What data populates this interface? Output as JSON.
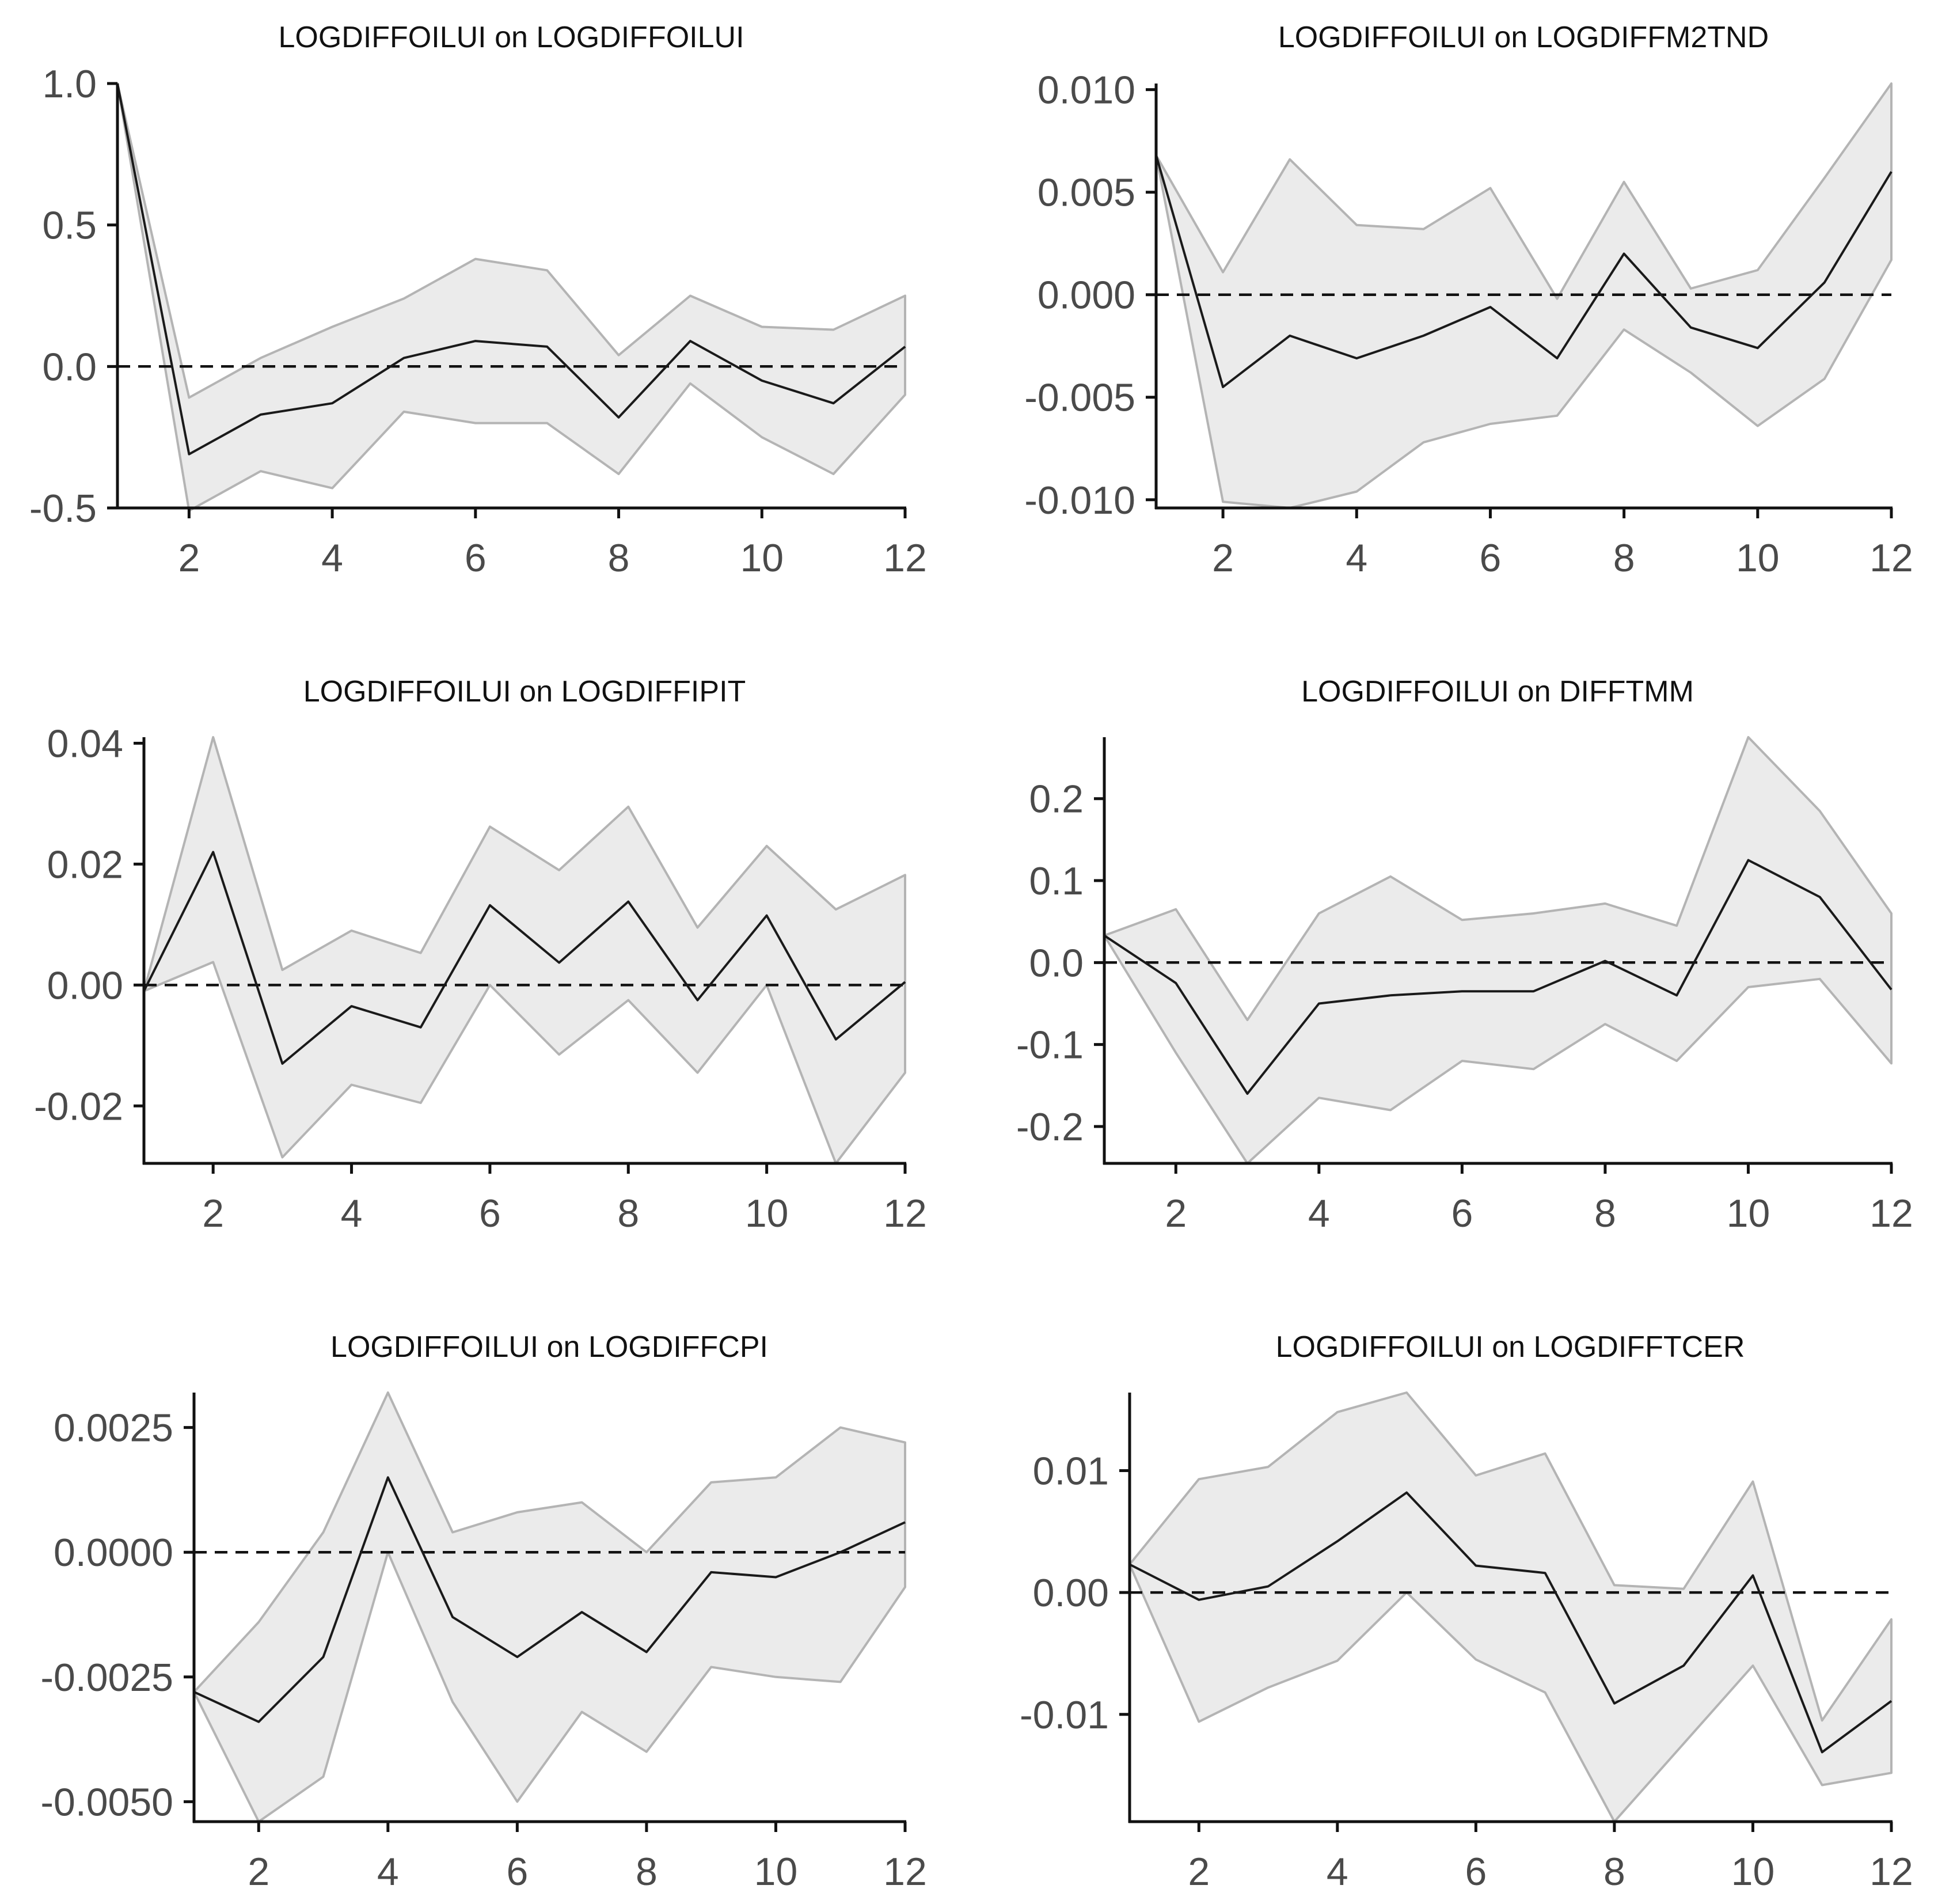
{
  "chart_data": [
    {
      "type": "line",
      "title": "LOGDIFFOILUI on LOGDIFFOILUI",
      "x": [
        1,
        2,
        3,
        4,
        5,
        6,
        7,
        8,
        9,
        10,
        11,
        12
      ],
      "series": [
        {
          "name": "impulse response",
          "values": [
            1.0,
            -0.31,
            -0.17,
            -0.13,
            0.03,
            0.09,
            0.07,
            -0.18,
            0.09,
            -0.05,
            -0.13,
            0.07
          ]
        },
        {
          "name": "upper band",
          "values": [
            1.0,
            -0.11,
            0.03,
            0.14,
            0.24,
            0.38,
            0.34,
            0.04,
            0.25,
            0.14,
            0.13,
            0.25
          ]
        },
        {
          "name": "lower band",
          "values": [
            1.0,
            -0.51,
            -0.37,
            -0.43,
            -0.16,
            -0.2,
            -0.2,
            -0.38,
            -0.06,
            -0.25,
            -0.38,
            -0.1
          ]
        }
      ],
      "xlim": [
        1,
        12
      ],
      "ylim": [
        -0.5,
        1.0
      ],
      "xticks": [
        2,
        4,
        6,
        8,
        10,
        12
      ],
      "xtick_labels": [
        "2",
        "4",
        "6",
        "8",
        "10",
        "12"
      ],
      "yticks": [
        -0.5,
        0.0,
        0.5,
        1.0
      ],
      "ytick_labels": [
        "-0.5",
        "0.0",
        "0.5",
        "1.0"
      ],
      "zero_line": true
    },
    {
      "type": "line",
      "title": "LOGDIFFOILUI on LOGDIFFM2TND",
      "x": [
        1,
        2,
        3,
        4,
        5,
        6,
        7,
        8,
        9,
        10,
        11,
        12
      ],
      "series": [
        {
          "name": "impulse response",
          "values": [
            0.0068,
            -0.0045,
            -0.002,
            -0.0031,
            -0.002,
            -0.0006,
            -0.0031,
            0.002,
            -0.0016,
            -0.0026,
            0.0006,
            0.006
          ]
        },
        {
          "name": "upper band",
          "values": [
            0.0068,
            0.0011,
            0.0066,
            0.0034,
            0.0032,
            0.0052,
            -0.0002,
            0.0055,
            0.0003,
            0.0012,
            0.0057,
            0.0103
          ]
        },
        {
          "name": "lower band",
          "values": [
            0.0068,
            -0.0101,
            -0.0104,
            -0.0096,
            -0.0072,
            -0.0063,
            -0.0059,
            -0.0017,
            -0.0038,
            -0.0064,
            -0.0041,
            0.0017
          ]
        }
      ],
      "xlim": [
        1,
        12
      ],
      "ylim": [
        -0.0104,
        0.0103
      ],
      "xticks": [
        2,
        4,
        6,
        8,
        10,
        12
      ],
      "xtick_labels": [
        "2",
        "4",
        "6",
        "8",
        "10",
        "12"
      ],
      "yticks": [
        -0.01,
        -0.005,
        0.0,
        0.005,
        0.01
      ],
      "ytick_labels": [
        "-0.010",
        "-0.005",
        "0.000",
        "0.005",
        "0.010"
      ],
      "zero_line": true
    },
    {
      "type": "line",
      "title": "LOGDIFFOILUI on LOGDIFFIPIT",
      "x": [
        1,
        2,
        3,
        4,
        5,
        6,
        7,
        8,
        9,
        10,
        11,
        12
      ],
      "series": [
        {
          "name": "impulse response",
          "values": [
            -0.001,
            0.022,
            -0.013,
            -0.0035,
            -0.007,
            0.0132,
            0.0037,
            0.0138,
            -0.0025,
            0.0115,
            -0.009,
            0.0005
          ]
        },
        {
          "name": "upper band",
          "values": [
            -0.001,
            0.041,
            0.0025,
            0.009,
            0.0053,
            0.0262,
            0.019,
            0.0295,
            0.0095,
            0.023,
            0.0125,
            0.0182
          ]
        },
        {
          "name": "lower band",
          "values": [
            -0.001,
            0.0038,
            -0.0285,
            -0.0165,
            -0.0195,
            0.0,
            -0.0115,
            -0.0025,
            -0.0145,
            0.0,
            -0.0295,
            -0.0145
          ]
        }
      ],
      "xlim": [
        1,
        12
      ],
      "ylim": [
        -0.0295,
        0.041
      ],
      "xticks": [
        2,
        4,
        6,
        8,
        10,
        12
      ],
      "xtick_labels": [
        "2",
        "4",
        "6",
        "8",
        "10",
        "12"
      ],
      "yticks": [
        -0.02,
        0.0,
        0.02,
        0.04
      ],
      "ytick_labels": [
        "-0.02",
        "0.00",
        "0.02",
        "0.04"
      ],
      "zero_line": true
    },
    {
      "type": "line",
      "title": "LOGDIFFOILUI on DIFFTMM",
      "x": [
        1,
        2,
        3,
        4,
        5,
        6,
        7,
        8,
        9,
        10,
        11,
        12
      ],
      "series": [
        {
          "name": "impulse response",
          "values": [
            0.033,
            -0.025,
            -0.16,
            -0.05,
            -0.04,
            -0.035,
            -0.035,
            0.002,
            -0.04,
            0.125,
            0.08,
            -0.033
          ]
        },
        {
          "name": "upper band",
          "values": [
            0.033,
            0.065,
            -0.07,
            0.06,
            0.105,
            0.052,
            0.06,
            0.072,
            0.045,
            0.275,
            0.185,
            0.06
          ]
        },
        {
          "name": "lower band",
          "values": [
            0.033,
            -0.11,
            -0.245,
            -0.165,
            -0.18,
            -0.12,
            -0.13,
            -0.075,
            -0.12,
            -0.03,
            -0.02,
            -0.123
          ]
        }
      ],
      "xlim": [
        1,
        12
      ],
      "ylim": [
        -0.245,
        0.275
      ],
      "xticks": [
        2,
        4,
        6,
        8,
        10,
        12
      ],
      "xtick_labels": [
        "2",
        "4",
        "6",
        "8",
        "10",
        "12"
      ],
      "yticks": [
        -0.2,
        -0.1,
        0.0,
        0.1,
        0.2
      ],
      "ytick_labels": [
        "-0.2",
        "-0.1",
        "0.0",
        "0.1",
        "0.2"
      ],
      "zero_line": true
    },
    {
      "type": "line",
      "title": "LOGDIFFOILUI on LOGDIFFCPI",
      "x": [
        1,
        2,
        3,
        4,
        5,
        6,
        7,
        8,
        9,
        10,
        11,
        12
      ],
      "series": [
        {
          "name": "impulse response",
          "values": [
            -0.0028,
            -0.0034,
            -0.0021,
            0.0015,
            -0.0013,
            -0.0021,
            -0.0012,
            -0.002,
            -0.0004,
            -0.0005,
            0.0,
            0.0006
          ]
        },
        {
          "name": "upper band",
          "values": [
            -0.0028,
            -0.0014,
            0.0004,
            0.0032,
            0.0004,
            0.0008,
            0.001,
            0.0,
            0.0014,
            0.0015,
            0.0025,
            0.0022
          ]
        },
        {
          "name": "lower band",
          "values": [
            -0.0028,
            -0.0054,
            -0.0045,
            0.0,
            -0.003,
            -0.005,
            -0.0032,
            -0.004,
            -0.0023,
            -0.0025,
            -0.0026,
            -0.0007
          ]
        }
      ],
      "xlim": [
        1,
        12
      ],
      "ylim": [
        -0.0054,
        0.0032
      ],
      "xticks": [
        2,
        4,
        6,
        8,
        10,
        12
      ],
      "xtick_labels": [
        "2",
        "4",
        "6",
        "8",
        "10",
        "12"
      ],
      "yticks": [
        -0.005,
        -0.0025,
        0.0,
        0.0025
      ],
      "ytick_labels": [
        "-0.0050",
        "-0.0025",
        "0.0000",
        "0.0025"
      ],
      "zero_line": true
    },
    {
      "type": "line",
      "title": "LOGDIFFOILUI on LOGDIFFTCER",
      "x": [
        1,
        2,
        3,
        4,
        5,
        6,
        7,
        8,
        9,
        10,
        11,
        12
      ],
      "series": [
        {
          "name": "impulse response",
          "values": [
            0.0023,
            -0.0006,
            0.0005,
            0.0042,
            0.0082,
            0.0022,
            0.0016,
            -0.0091,
            -0.006,
            0.0014,
            -0.0131,
            -0.0089
          ]
        },
        {
          "name": "upper band",
          "values": [
            0.0023,
            0.0093,
            0.0103,
            0.0148,
            0.0164,
            0.0096,
            0.0114,
            0.0006,
            0.0003,
            0.0091,
            -0.0105,
            -0.0022
          ]
        },
        {
          "name": "lower band",
          "values": [
            0.0023,
            -0.0106,
            -0.0078,
            -0.0056,
            0.0,
            -0.0055,
            -0.0082,
            -0.0188,
            -0.0124,
            -0.006,
            -0.0158,
            -0.0148
          ]
        }
      ],
      "xlim": [
        1,
        12
      ],
      "ylim": [
        -0.0188,
        0.0164
      ],
      "xticks": [
        2,
        4,
        6,
        8,
        10,
        12
      ],
      "xtick_labels": [
        "2",
        "4",
        "6",
        "8",
        "10",
        "12"
      ],
      "yticks": [
        -0.01,
        0.0,
        0.01
      ],
      "ytick_labels": [
        "-0.01",
        "0.00",
        "0.01"
      ],
      "zero_line": true
    }
  ]
}
